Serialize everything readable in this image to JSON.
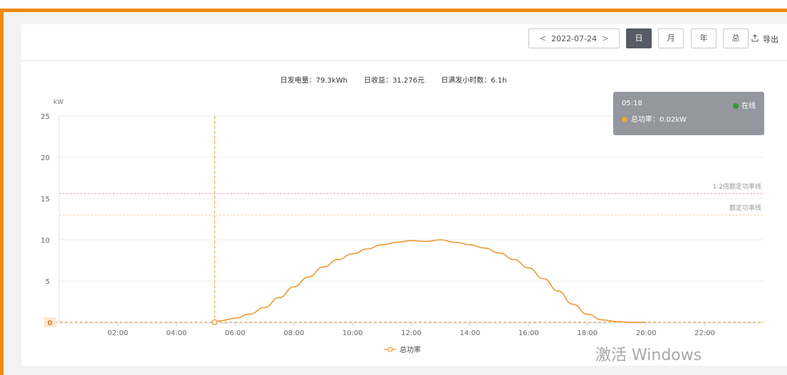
{
  "toolbar": {
    "date": "2022-07-24",
    "prev_glyph": "<",
    "next_glyph": ">",
    "day": "日",
    "month": "月",
    "year": "年",
    "total": "总",
    "export": "导出",
    "active_color": "#565b66"
  },
  "stats": {
    "daily_energy": "日发电量：79.3kWh",
    "daily_revenue": "日收益：31.276元",
    "full_hours": "日满发小时数：6.1h"
  },
  "tooltip": {
    "time": "05:18",
    "status": "在线",
    "value": "总功率：0.02kW",
    "status_color": "#2e9b2e"
  },
  "watermark": "激活 Windows",
  "colors": {
    "frame": "#f08a0d",
    "line": "#ec9a36",
    "ref_12x": "#f2a1ac",
    "ref_rated": "#f1d8a0"
  },
  "chart_data": {
    "type": "line",
    "ylabel": "kW",
    "ylim": [
      0,
      25
    ],
    "yticks": [
      0,
      5,
      10,
      15,
      20,
      25
    ],
    "xlim": [
      "00:00",
      "24:00"
    ],
    "xticks": [
      "02:00",
      "04:00",
      "06:00",
      "08:00",
      "10:00",
      "12:00",
      "14:00",
      "16:00",
      "18:00",
      "20:00",
      "22:00"
    ],
    "grid": true,
    "legend_position": "bottom-center",
    "series": [
      {
        "name": "总功率",
        "x": [
          "05:18",
          "05:30",
          "06:00",
          "06:30",
          "07:00",
          "07:30",
          "08:00",
          "08:30",
          "09:00",
          "09:30",
          "10:00",
          "10:30",
          "11:00",
          "11:30",
          "12:00",
          "12:30",
          "13:00",
          "13:30",
          "14:00",
          "14:30",
          "15:00",
          "15:30",
          "16:00",
          "16:30",
          "17:00",
          "17:30",
          "18:00",
          "18:30",
          "19:00",
          "19:30",
          "20:00"
        ],
        "y": [
          0.02,
          0.2,
          0.5,
          1.0,
          1.8,
          3.0,
          4.3,
          5.5,
          6.7,
          7.6,
          8.3,
          8.9,
          9.4,
          9.7,
          9.9,
          9.8,
          10.0,
          9.7,
          9.4,
          9.0,
          8.4,
          7.6,
          6.6,
          5.3,
          3.8,
          2.2,
          1.0,
          0.3,
          0.1,
          0.0,
          0.0
        ]
      }
    ],
    "reference_lines": [
      {
        "name": "1.2倍额定功率线",
        "y": 15.6
      },
      {
        "name": "额定功率线",
        "y": 13.0
      }
    ],
    "crosshair": {
      "x": "05:18",
      "y": 0.02,
      "y_label": "0"
    }
  }
}
